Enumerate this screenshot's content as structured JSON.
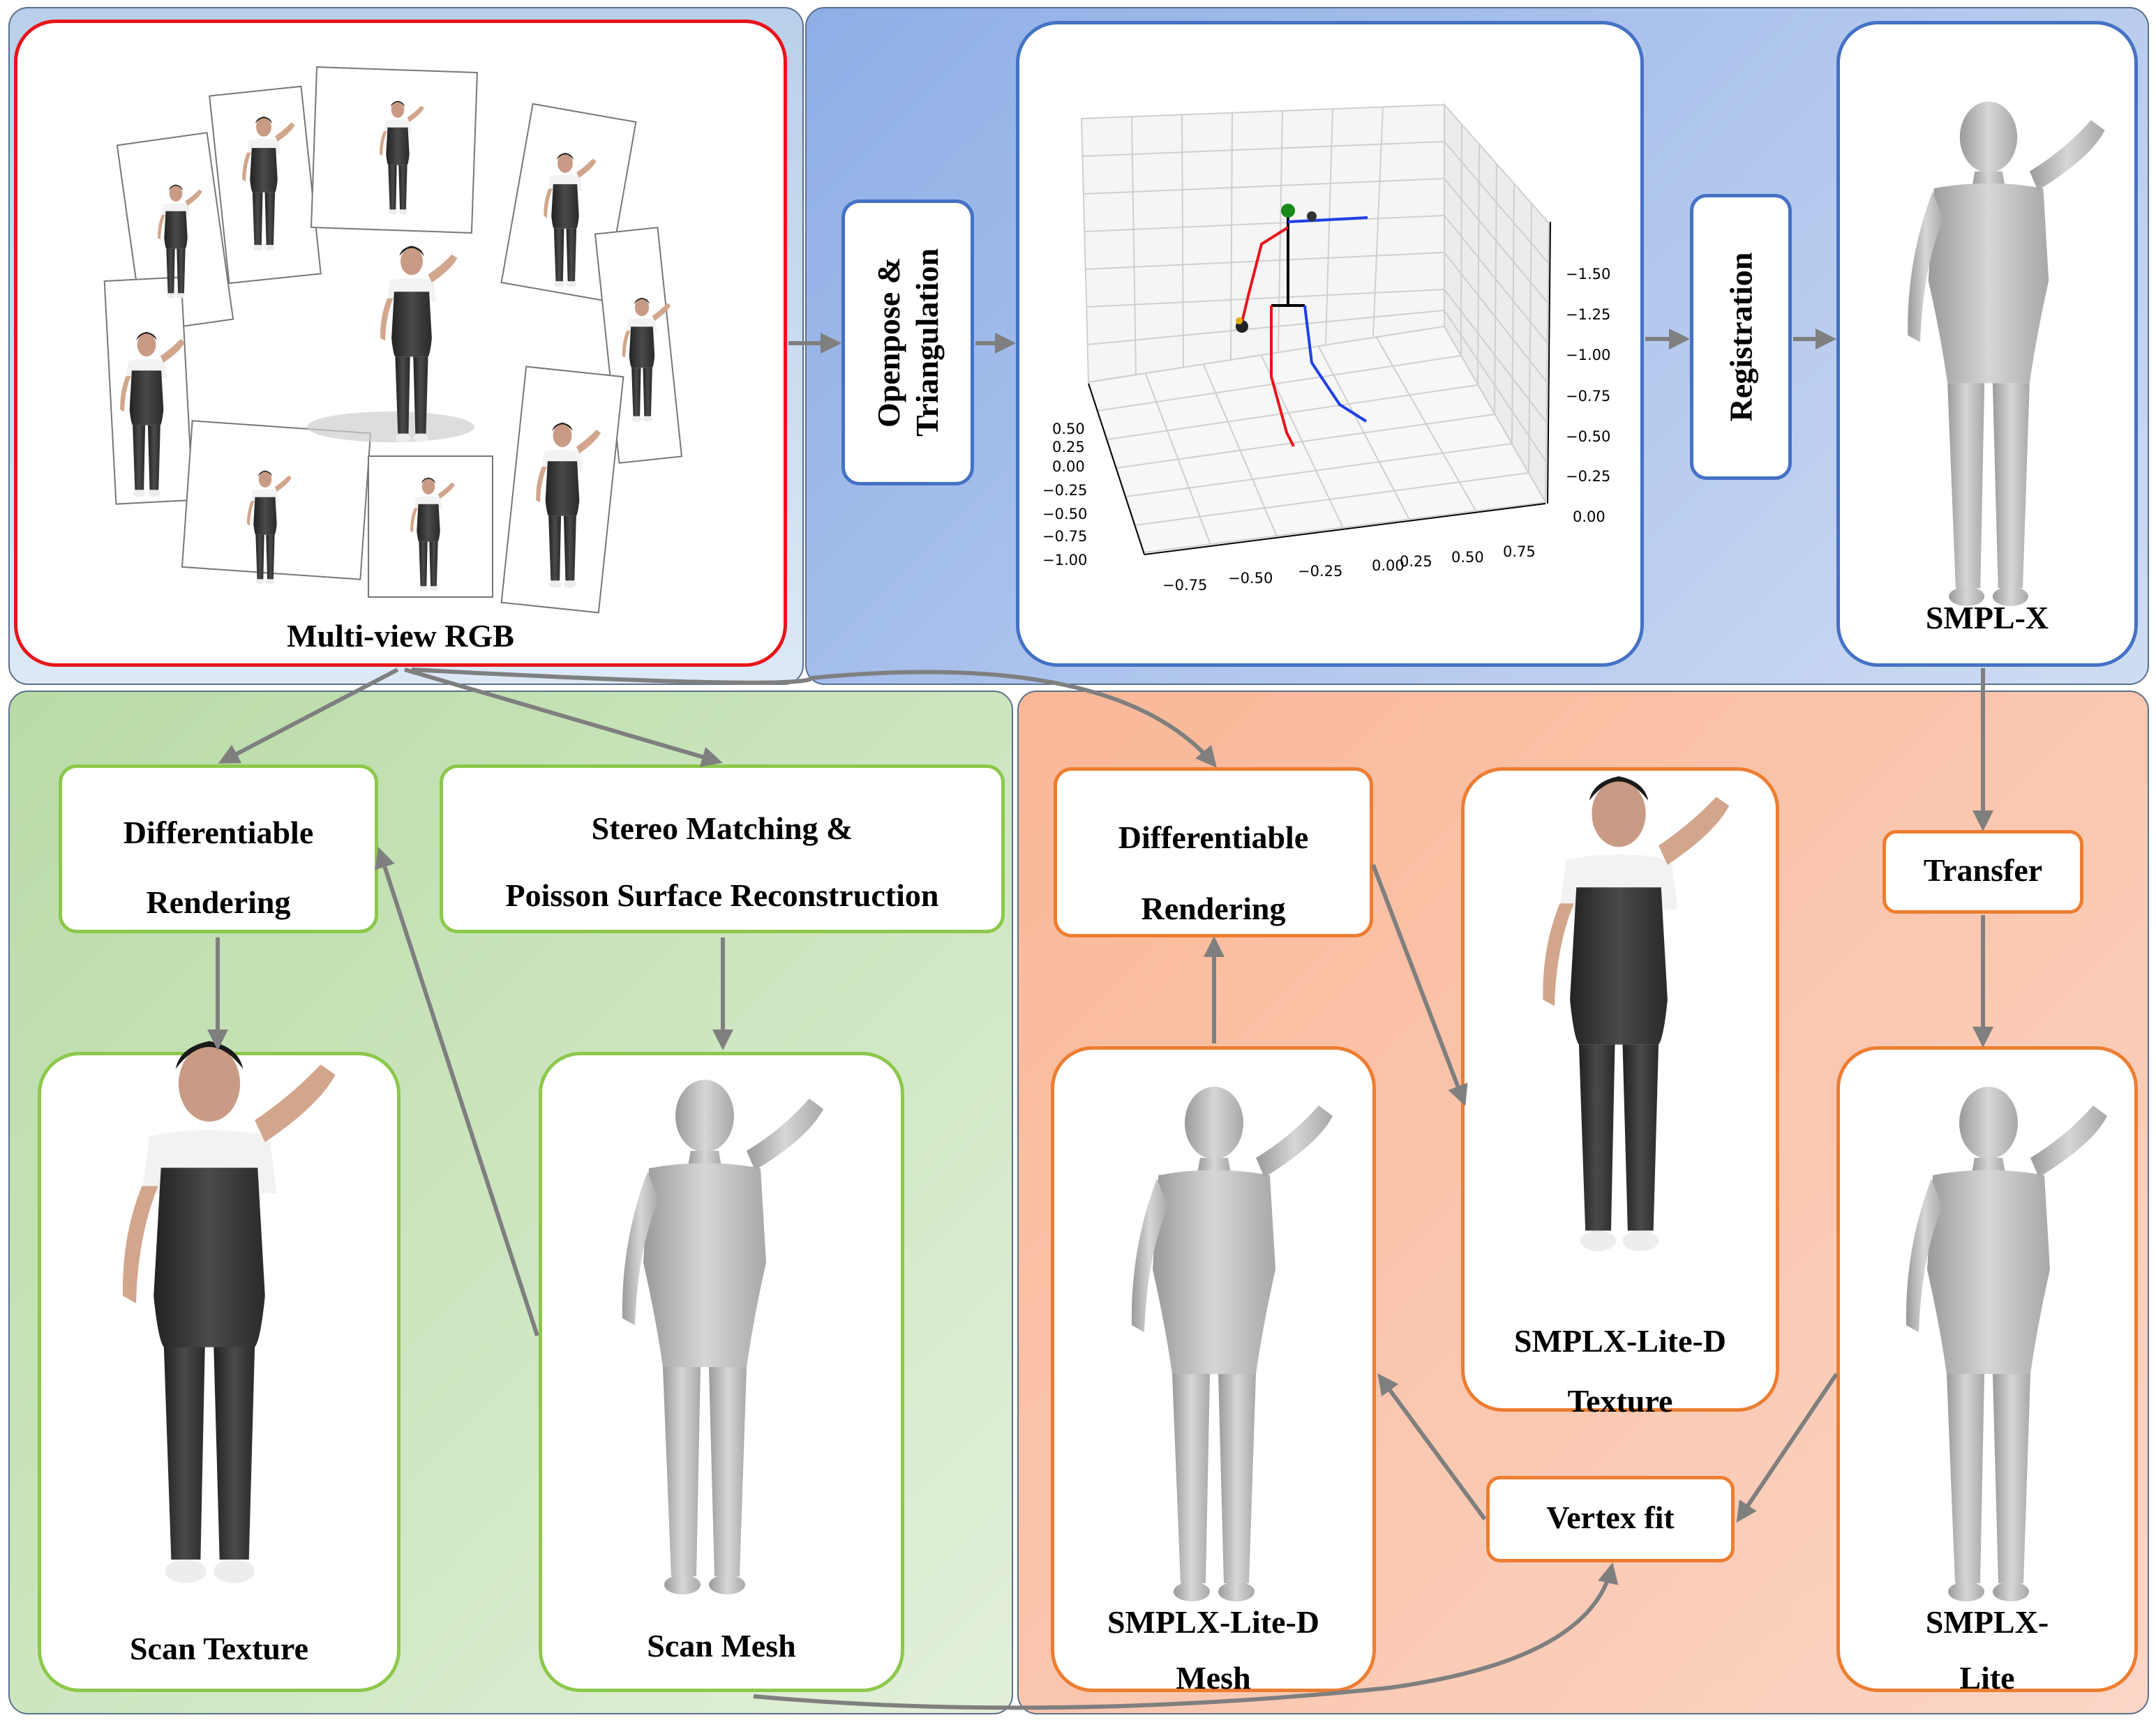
{
  "nodes": {
    "multiview": "Multi-view RGB",
    "openpose_line1": "Openpose &",
    "openpose_line2": "Triangulation",
    "registration": "Registration",
    "smplx": "SMPL-X",
    "diff_render_left_1": "Differentiable",
    "diff_render_left_2": "Rendering",
    "stereo_1": "Stereo Matching &",
    "stereo_2": "Poisson Surface Reconstruction",
    "scan_texture": "Scan Texture",
    "scan_mesh": "Scan Mesh",
    "diff_render_right_1": "Differentiable",
    "diff_render_right_2": "Rendering",
    "lite_d_texture_1": "SMPLX-Lite-D",
    "lite_d_texture_2": "Texture",
    "transfer": "Transfer",
    "lite_d_mesh_1": "SMPLX-Lite-D",
    "lite_d_mesh_2": "Mesh",
    "vertex_fit": "Vertex fit",
    "lite_1": "SMPLX-",
    "lite_2": "Lite"
  },
  "plot3d": {
    "z_ticks": [
      "−1.50",
      "−1.25",
      "−1.00",
      "−0.75",
      "−0.50",
      "−0.25",
      "0.00"
    ],
    "x_ticks": [
      "−0.75",
      "−0.50",
      "−0.25",
      "0.00",
      "0.25",
      "0.50",
      "0.75"
    ],
    "y_ticks": [
      "0.50",
      "0.25",
      "0.00",
      "−0.25",
      "−0.50",
      "−0.75",
      "−1.00"
    ]
  },
  "colors": {
    "red_border": "#e8141c",
    "blue_border": "#4472c4",
    "green_border": "#8cc84b",
    "orange_border": "#ed7d31",
    "arrow": "#7f7f7f"
  }
}
